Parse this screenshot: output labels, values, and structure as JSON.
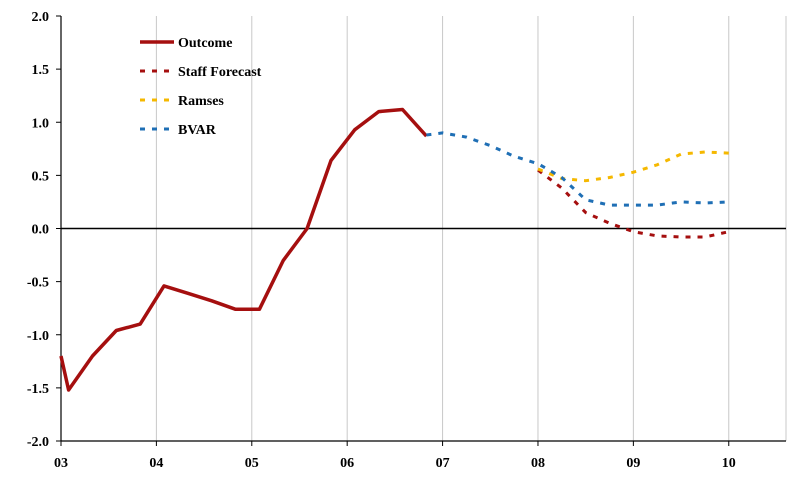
{
  "chart_data": {
    "type": "line",
    "title": "",
    "xlabel": "",
    "ylabel": "",
    "ylim": [
      -2.0,
      2.0
    ],
    "y_ticks": [
      -2.0,
      -1.5,
      -1.0,
      -0.5,
      0.0,
      0.5,
      1.0,
      1.5,
      2.0
    ],
    "y_tick_labels": [
      "-2.0",
      "-1.5",
      "-1.0",
      "-0.5",
      "0.0",
      "0.5",
      "1.0",
      "1.5",
      "2.0"
    ],
    "xlim": [
      2003.0,
      2010.6
    ],
    "x_ticks": [
      2003,
      2004,
      2005,
      2006,
      2007,
      2008,
      2009,
      2010
    ],
    "x_tick_labels": [
      "03",
      "04",
      "05",
      "06",
      "07",
      "08",
      "09",
      "10"
    ],
    "grid": "vertical gridlines at years",
    "legend": "top-left",
    "series": [
      {
        "name": "Outcome",
        "color": "#a50f0f",
        "style": "solid",
        "x": [
          2003.0,
          2003.08,
          2003.33,
          2003.58,
          2003.83,
          2004.08,
          2004.33,
          2004.58,
          2004.83,
          2005.08,
          2005.33,
          2005.58,
          2005.83,
          2006.08,
          2006.33,
          2006.58,
          2006.83
        ],
        "y": [
          -1.2,
          -1.52,
          -1.2,
          -0.96,
          -0.9,
          -0.54,
          -0.61,
          -0.68,
          -0.76,
          -0.76,
          -0.3,
          0.0,
          0.64,
          0.93,
          1.1,
          1.12,
          0.87
        ]
      },
      {
        "name": "Staff Forecast",
        "color": "#a50f0f",
        "style": "dashed",
        "x": [
          2008.0,
          2008.25,
          2008.5,
          2008.75,
          2009.0,
          2009.25,
          2009.5,
          2009.75,
          2010.0
        ],
        "y": [
          0.55,
          0.38,
          0.15,
          0.05,
          -0.03,
          -0.07,
          -0.08,
          -0.08,
          -0.03
        ]
      },
      {
        "name": "Ramses",
        "color": "#f5b800",
        "style": "dashed",
        "x": [
          2008.0,
          2008.25,
          2008.5,
          2008.75,
          2009.0,
          2009.25,
          2009.5,
          2009.75,
          2010.0
        ],
        "y": [
          0.56,
          0.47,
          0.45,
          0.48,
          0.53,
          0.6,
          0.7,
          0.72,
          0.71
        ]
      },
      {
        "name": "BVAR",
        "color": "#1f6fb5",
        "style": "dashed",
        "x": [
          2006.83,
          2007.0,
          2007.25,
          2007.5,
          2007.75,
          2008.0,
          2008.25,
          2008.5,
          2008.75,
          2009.0,
          2009.25,
          2009.5,
          2009.75,
          2010.0
        ],
        "y": [
          0.88,
          0.9,
          0.86,
          0.78,
          0.68,
          0.61,
          0.48,
          0.27,
          0.22,
          0.22,
          0.22,
          0.25,
          0.24,
          0.25
        ]
      }
    ]
  }
}
